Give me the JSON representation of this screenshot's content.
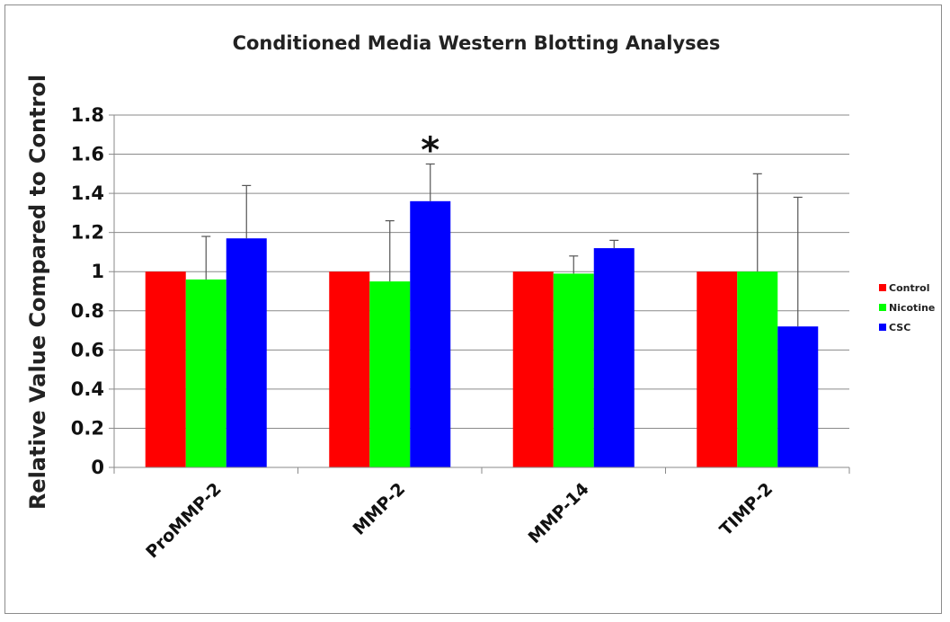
{
  "chart_data": {
    "type": "bar",
    "title": "Conditioned Media Western Blotting Analyses",
    "xlabel": "",
    "ylabel": "Relative Value Compared to Control",
    "ylim": [
      0,
      1.8
    ],
    "yticks": [
      "0",
      "0.2",
      "0.4",
      "0.6",
      "0.8",
      "1",
      "1.2",
      "1.4",
      "1.6",
      "1.8"
    ],
    "grid": true,
    "legend_position": "right",
    "categories": [
      "ProMMP-2",
      "MMP-2",
      "MMP-14",
      "TIMP-2"
    ],
    "series": [
      {
        "name": "Control",
        "color": "#ff0000",
        "values": [
          1.0,
          1.0,
          1.0,
          1.0
        ],
        "error": [
          0,
          0,
          0,
          0
        ]
      },
      {
        "name": "Nicotine",
        "color": "#00ff00",
        "values": [
          0.96,
          0.95,
          0.99,
          1.0
        ],
        "error": [
          0.22,
          0.31,
          0.09,
          0.5
        ]
      },
      {
        "name": "CSC",
        "color": "#0000ff",
        "values": [
          1.17,
          1.36,
          1.12,
          0.72
        ],
        "error": [
          0.27,
          0.19,
          0.04,
          0.66
        ]
      }
    ],
    "annotations": [
      {
        "text": "*",
        "category": "MMP-2",
        "series": "CSC"
      }
    ]
  }
}
